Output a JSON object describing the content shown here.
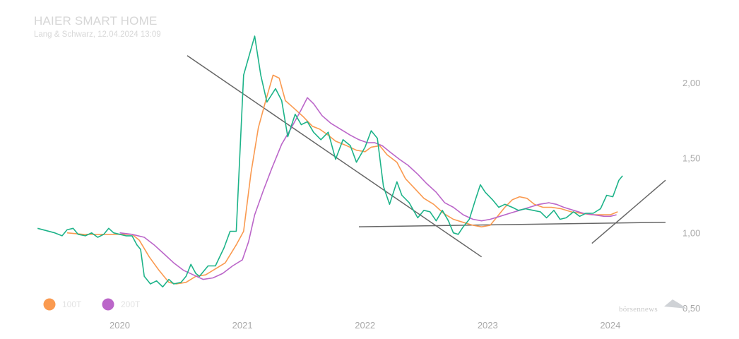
{
  "chart_data": {
    "type": "line",
    "title": "HAIER SMART HOME",
    "subtitle": "Lang & Schwarz, 12.04.2024 13:09",
    "x_ticks": [
      {
        "x": 2020.0,
        "label": "2020"
      },
      {
        "x": 2021.0,
        "label": "2021"
      },
      {
        "x": 2022.0,
        "label": "2022"
      },
      {
        "x": 2023.0,
        "label": "2023"
      },
      {
        "x": 2024.0,
        "label": "2024"
      }
    ],
    "y_ticks": [
      {
        "y": 0.5,
        "label": "0,50"
      },
      {
        "y": 1.0,
        "label": "1,00"
      },
      {
        "y": 1.5,
        "label": "1,50"
      },
      {
        "y": 2.0,
        "label": "2,00"
      }
    ],
    "xlim": [
      2019.3,
      2024.45
    ],
    "ylim": [
      0.5,
      2.5
    ],
    "grid": false,
    "legend_position": "bottom-left",
    "series": [
      {
        "name": "price",
        "color": "#1db389",
        "points": [
          [
            2019.33,
            1.03
          ],
          [
            2019.47,
            1.0
          ],
          [
            2019.53,
            0.98
          ],
          [
            2019.57,
            1.02
          ],
          [
            2019.62,
            1.03
          ],
          [
            2019.66,
            0.99
          ],
          [
            2019.72,
            0.98
          ],
          [
            2019.77,
            1.0
          ],
          [
            2019.82,
            0.97
          ],
          [
            2019.87,
            0.99
          ],
          [
            2019.91,
            1.03
          ],
          [
            2019.95,
            1.0
          ],
          [
            2020.0,
            0.99
          ],
          [
            2020.05,
            0.98
          ],
          [
            2020.1,
            0.98
          ],
          [
            2020.14,
            0.92
          ],
          [
            2020.17,
            0.89
          ],
          [
            2020.2,
            0.71
          ],
          [
            2020.25,
            0.66
          ],
          [
            2020.3,
            0.68
          ],
          [
            2020.35,
            0.64
          ],
          [
            2020.4,
            0.69
          ],
          [
            2020.44,
            0.66
          ],
          [
            2020.5,
            0.67
          ],
          [
            2020.54,
            0.71
          ],
          [
            2020.58,
            0.79
          ],
          [
            2020.62,
            0.73
          ],
          [
            2020.65,
            0.71
          ],
          [
            2020.72,
            0.78
          ],
          [
            2020.78,
            0.78
          ],
          [
            2020.85,
            0.9
          ],
          [
            2020.9,
            1.01
          ],
          [
            2020.95,
            1.01
          ],
          [
            2021.01,
            2.05
          ],
          [
            2021.1,
            2.31
          ],
          [
            2021.15,
            2.05
          ],
          [
            2021.2,
            1.87
          ],
          [
            2021.27,
            1.96
          ],
          [
            2021.32,
            1.88
          ],
          [
            2021.37,
            1.64
          ],
          [
            2021.43,
            1.79
          ],
          [
            2021.48,
            1.72
          ],
          [
            2021.53,
            1.74
          ],
          [
            2021.58,
            1.67
          ],
          [
            2021.64,
            1.62
          ],
          [
            2021.7,
            1.67
          ],
          [
            2021.76,
            1.49
          ],
          [
            2021.82,
            1.62
          ],
          [
            2021.88,
            1.58
          ],
          [
            2021.93,
            1.47
          ],
          [
            2022.0,
            1.57
          ],
          [
            2022.05,
            1.68
          ],
          [
            2022.1,
            1.63
          ],
          [
            2022.15,
            1.31
          ],
          [
            2022.2,
            1.19
          ],
          [
            2022.26,
            1.34
          ],
          [
            2022.3,
            1.25
          ],
          [
            2022.36,
            1.2
          ],
          [
            2022.43,
            1.1
          ],
          [
            2022.48,
            1.15
          ],
          [
            2022.53,
            1.14
          ],
          [
            2022.58,
            1.08
          ],
          [
            2022.63,
            1.15
          ],
          [
            2022.68,
            1.08
          ],
          [
            2022.72,
            1.0
          ],
          [
            2022.76,
            0.99
          ],
          [
            2022.8,
            1.04
          ],
          [
            2022.85,
            1.09
          ],
          [
            2022.9,
            1.22
          ],
          [
            2022.94,
            1.32
          ],
          [
            2022.98,
            1.27
          ],
          [
            2023.04,
            1.22
          ],
          [
            2023.09,
            1.17
          ],
          [
            2023.14,
            1.19
          ],
          [
            2023.2,
            1.17
          ],
          [
            2023.25,
            1.15
          ],
          [
            2023.31,
            1.16
          ],
          [
            2023.37,
            1.15
          ],
          [
            2023.43,
            1.14
          ],
          [
            2023.48,
            1.1
          ],
          [
            2023.54,
            1.15
          ],
          [
            2023.59,
            1.09
          ],
          [
            2023.64,
            1.1
          ],
          [
            2023.7,
            1.14
          ],
          [
            2023.75,
            1.11
          ],
          [
            2023.8,
            1.13
          ],
          [
            2023.86,
            1.13
          ],
          [
            2023.92,
            1.16
          ],
          [
            2023.97,
            1.25
          ],
          [
            2024.02,
            1.24
          ],
          [
            2024.07,
            1.35
          ],
          [
            2024.1,
            1.38
          ]
        ]
      },
      {
        "name": "100T",
        "color": "#fa9a50",
        "points": [
          [
            2019.57,
            1.0
          ],
          [
            2019.7,
            0.99
          ],
          [
            2019.85,
            0.99
          ],
          [
            2020.0,
            0.99
          ],
          [
            2020.1,
            0.99
          ],
          [
            2020.16,
            0.95
          ],
          [
            2020.24,
            0.84
          ],
          [
            2020.32,
            0.75
          ],
          [
            2020.4,
            0.67
          ],
          [
            2020.46,
            0.66
          ],
          [
            2020.54,
            0.67
          ],
          [
            2020.62,
            0.71
          ],
          [
            2020.7,
            0.72
          ],
          [
            2020.78,
            0.76
          ],
          [
            2020.86,
            0.8
          ],
          [
            2020.95,
            0.92
          ],
          [
            2021.01,
            1.01
          ],
          [
            2021.07,
            1.4
          ],
          [
            2021.13,
            1.7
          ],
          [
            2021.19,
            1.88
          ],
          [
            2021.25,
            2.05
          ],
          [
            2021.3,
            2.03
          ],
          [
            2021.35,
            1.88
          ],
          [
            2021.42,
            1.83
          ],
          [
            2021.5,
            1.77
          ],
          [
            2021.57,
            1.71
          ],
          [
            2021.63,
            1.69
          ],
          [
            2021.7,
            1.65
          ],
          [
            2021.76,
            1.61
          ],
          [
            2021.85,
            1.58
          ],
          [
            2021.93,
            1.55
          ],
          [
            2022.0,
            1.54
          ],
          [
            2022.05,
            1.57
          ],
          [
            2022.12,
            1.58
          ],
          [
            2022.18,
            1.52
          ],
          [
            2022.26,
            1.47
          ],
          [
            2022.33,
            1.36
          ],
          [
            2022.4,
            1.3
          ],
          [
            2022.48,
            1.23
          ],
          [
            2022.56,
            1.19
          ],
          [
            2022.64,
            1.13
          ],
          [
            2022.72,
            1.09
          ],
          [
            2022.8,
            1.07
          ],
          [
            2022.88,
            1.05
          ],
          [
            2022.95,
            1.04
          ],
          [
            2023.02,
            1.05
          ],
          [
            2023.08,
            1.11
          ],
          [
            2023.14,
            1.17
          ],
          [
            2023.2,
            1.22
          ],
          [
            2023.26,
            1.24
          ],
          [
            2023.32,
            1.23
          ],
          [
            2023.38,
            1.19
          ],
          [
            2023.45,
            1.17
          ],
          [
            2023.52,
            1.17
          ],
          [
            2023.6,
            1.16
          ],
          [
            2023.68,
            1.14
          ],
          [
            2023.76,
            1.13
          ],
          [
            2023.85,
            1.12
          ],
          [
            2023.93,
            1.12
          ],
          [
            2024.0,
            1.12
          ],
          [
            2024.06,
            1.14
          ]
        ]
      },
      {
        "name": "200T",
        "color": "#bb66c9",
        "points": [
          [
            2020.0,
            1.0
          ],
          [
            2020.1,
            0.99
          ],
          [
            2020.2,
            0.97
          ],
          [
            2020.28,
            0.92
          ],
          [
            2020.36,
            0.86
          ],
          [
            2020.44,
            0.8
          ],
          [
            2020.52,
            0.75
          ],
          [
            2020.6,
            0.72
          ],
          [
            2020.68,
            0.69
          ],
          [
            2020.76,
            0.7
          ],
          [
            2020.84,
            0.73
          ],
          [
            2020.92,
            0.78
          ],
          [
            2021.0,
            0.82
          ],
          [
            2021.05,
            0.94
          ],
          [
            2021.1,
            1.12
          ],
          [
            2021.17,
            1.28
          ],
          [
            2021.24,
            1.43
          ],
          [
            2021.32,
            1.59
          ],
          [
            2021.4,
            1.7
          ],
          [
            2021.48,
            1.82
          ],
          [
            2021.53,
            1.9
          ],
          [
            2021.58,
            1.86
          ],
          [
            2021.65,
            1.78
          ],
          [
            2021.72,
            1.73
          ],
          [
            2021.8,
            1.69
          ],
          [
            2021.88,
            1.65
          ],
          [
            2021.95,
            1.62
          ],
          [
            2022.02,
            1.6
          ],
          [
            2022.08,
            1.6
          ],
          [
            2022.14,
            1.58
          ],
          [
            2022.2,
            1.54
          ],
          [
            2022.28,
            1.49
          ],
          [
            2022.35,
            1.45
          ],
          [
            2022.43,
            1.39
          ],
          [
            2022.5,
            1.33
          ],
          [
            2022.58,
            1.27
          ],
          [
            2022.65,
            1.2
          ],
          [
            2022.72,
            1.17
          ],
          [
            2022.8,
            1.12
          ],
          [
            2022.88,
            1.09
          ],
          [
            2022.95,
            1.08
          ],
          [
            2023.02,
            1.09
          ],
          [
            2023.1,
            1.11
          ],
          [
            2023.18,
            1.13
          ],
          [
            2023.26,
            1.15
          ],
          [
            2023.34,
            1.17
          ],
          [
            2023.42,
            1.19
          ],
          [
            2023.5,
            1.2
          ],
          [
            2023.56,
            1.19
          ],
          [
            2023.62,
            1.17
          ],
          [
            2023.7,
            1.15
          ],
          [
            2023.78,
            1.13
          ],
          [
            2023.86,
            1.12
          ],
          [
            2023.95,
            1.11
          ],
          [
            2024.0,
            1.11
          ],
          [
            2024.05,
            1.12
          ]
        ]
      }
    ],
    "trendlines": [
      {
        "name": "downtrend",
        "color": "#666666",
        "from": [
          2020.55,
          2.18
        ],
        "to": [
          2022.95,
          0.84
        ]
      },
      {
        "name": "support",
        "color": "#666666",
        "from": [
          2021.95,
          1.04
        ],
        "to": [
          2024.45,
          1.07
        ]
      },
      {
        "name": "uptrend",
        "color": "#666666",
        "from": [
          2023.85,
          0.93
        ],
        "to": [
          2024.45,
          1.35
        ]
      }
    ],
    "legend": [
      {
        "label": "100T",
        "color": "#fa9a50"
      },
      {
        "label": "200T",
        "color": "#bb66c9"
      }
    ],
    "watermark": "börsennews"
  }
}
